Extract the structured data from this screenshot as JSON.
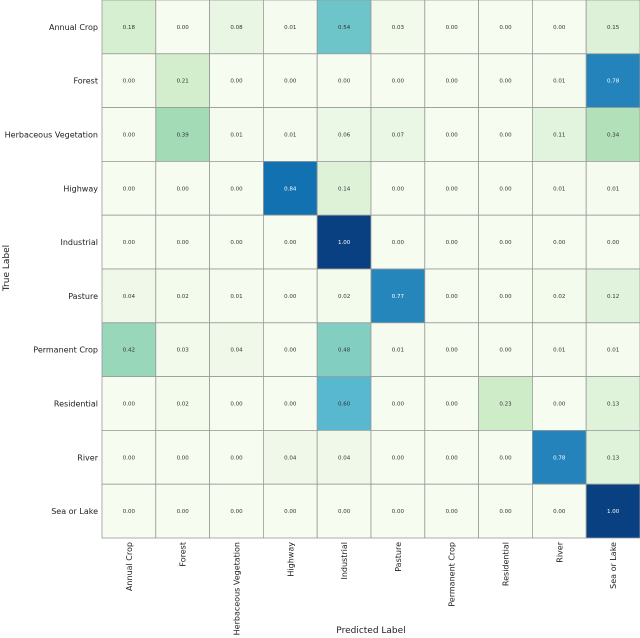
{
  "chart_data": {
    "type": "heatmap",
    "title": "",
    "xlabel": "Predicted Label",
    "ylabel": "True Label",
    "classes": [
      "Annual Crop",
      "Forest",
      "Herbaceous Vegetation",
      "Highway",
      "Industrial",
      "Pasture",
      "Permanent Crop",
      "Residential",
      "River",
      "Sea or Lake"
    ],
    "values": [
      [
        0.18,
        0.0,
        0.08,
        0.01,
        0.54,
        0.03,
        0.0,
        0.0,
        0.0,
        0.15
      ],
      [
        0.0,
        0.21,
        0.0,
        0.0,
        0.0,
        0.0,
        0.0,
        0.0,
        0.01,
        0.78
      ],
      [
        0.0,
        0.39,
        0.01,
        0.01,
        0.06,
        0.07,
        0.0,
        0.0,
        0.11,
        0.34
      ],
      [
        0.0,
        0.0,
        0.0,
        0.84,
        0.14,
        0.0,
        0.0,
        0.0,
        0.01,
        0.01
      ],
      [
        0.0,
        0.0,
        0.0,
        0.0,
        1.0,
        0.0,
        0.0,
        0.0,
        0.0,
        0.0
      ],
      [
        0.04,
        0.02,
        0.01,
        0.0,
        0.02,
        0.77,
        0.0,
        0.0,
        0.02,
        0.12
      ],
      [
        0.42,
        0.03,
        0.04,
        0.0,
        0.48,
        0.01,
        0.0,
        0.0,
        0.01,
        0.01
      ],
      [
        0.0,
        0.02,
        0.0,
        0.0,
        0.6,
        0.0,
        0.0,
        0.23,
        0.0,
        0.13
      ],
      [
        0.0,
        0.0,
        0.0,
        0.04,
        0.04,
        0.0,
        0.0,
        0.0,
        0.78,
        0.13
      ],
      [
        0.0,
        0.0,
        0.0,
        0.0,
        0.0,
        0.0,
        0.0,
        0.0,
        0.0,
        1.0
      ]
    ],
    "value_range": [
      0,
      1
    ],
    "colormap": "GnBu",
    "grid": true
  }
}
